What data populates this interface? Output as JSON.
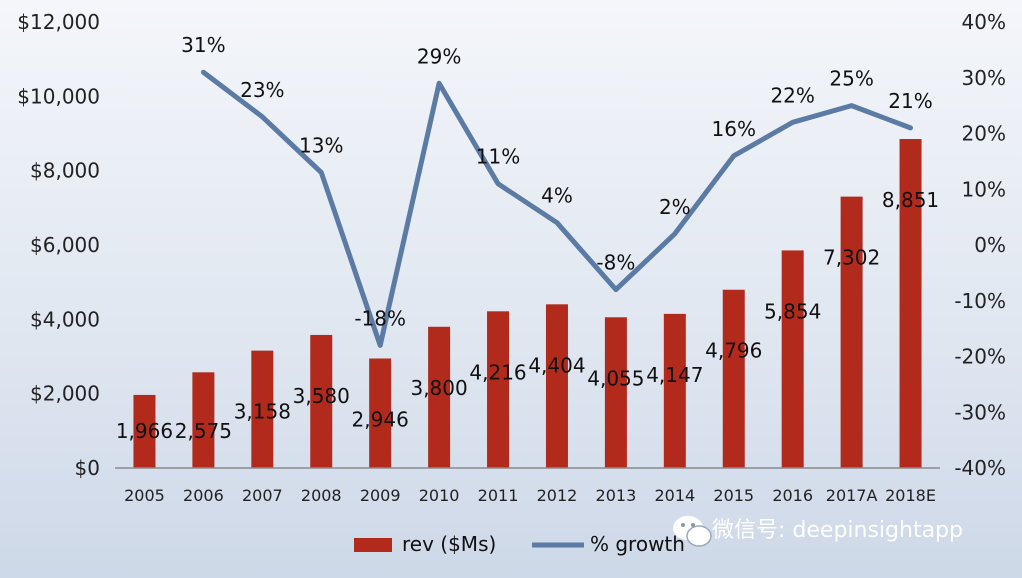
{
  "chart_data": {
    "type": "bar+line",
    "categories": [
      "2005",
      "2006",
      "2007",
      "2008",
      "2009",
      "2010",
      "2011",
      "2012",
      "2013",
      "2014",
      "2015",
      "2016",
      "2017A",
      "2018E"
    ],
    "series": [
      {
        "name": "rev ($Ms)",
        "type": "bar",
        "axis": "left",
        "color": "#b22a1c",
        "values": [
          1966,
          2575,
          3158,
          3580,
          2946,
          3800,
          4216,
          4404,
          4055,
          4147,
          4796,
          5854,
          7302,
          8851
        ],
        "labels": [
          "1,966",
          "2,575",
          "3,158",
          "3,580",
          "2,946",
          "3,800",
          "4,216",
          "4,404",
          "4,055",
          "4,147",
          "4,796",
          "5,854",
          "7,302",
          "8,851"
        ]
      },
      {
        "name": "% growth",
        "type": "line",
        "axis": "right",
        "color": "#5b7ba5",
        "values": [
          null,
          31,
          23,
          13,
          -18,
          29,
          11,
          4,
          -8,
          2,
          16,
          22,
          25,
          21
        ],
        "labels": [
          "",
          "31%",
          "23%",
          "13%",
          "-18%",
          "29%",
          "11%",
          "4%",
          "-8%",
          "2%",
          "16%",
          "22%",
          "25%",
          "21%"
        ]
      }
    ],
    "y_left": {
      "range": [
        0,
        12000
      ],
      "ticks": [
        0,
        2000,
        4000,
        6000,
        8000,
        10000,
        12000
      ],
      "tick_labels": [
        "$0",
        "$2,000",
        "$4,000",
        "$6,000",
        "$8,000",
        "$10,000",
        "$12,000"
      ]
    },
    "y_right": {
      "range": [
        -40,
        40
      ],
      "ticks": [
        -40,
        -30,
        -20,
        -10,
        0,
        10,
        20,
        30,
        40
      ],
      "tick_labels": [
        "-40%",
        "-30%",
        "-20%",
        "-10%",
        "0%",
        "10%",
        "20%",
        "30%",
        "40%"
      ]
    },
    "legend": {
      "placement": "bottom-center",
      "items": [
        "rev ($Ms)",
        "% growth"
      ]
    },
    "grid": false
  },
  "watermark": {
    "text": "微信号: deepinsightapp",
    "icon": "wechat-icon"
  }
}
